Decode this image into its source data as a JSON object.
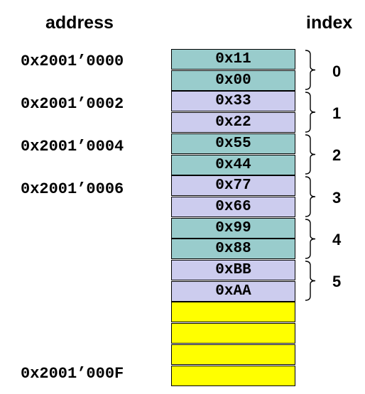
{
  "headings": {
    "address": "address",
    "index": "index"
  },
  "colors": {
    "teal": "#99CCCC",
    "lavender": "#CCCCEE",
    "yellow": "#FFFF00"
  },
  "addresses": [
    "0x2001’0000",
    "0x2001’0002",
    "0x2001’0004",
    "0x2001’0006",
    "0x2001’000F"
  ],
  "cells": [
    {
      "value": "0x11",
      "fill": "teal"
    },
    {
      "value": "0x00",
      "fill": "teal"
    },
    {
      "value": "0x33",
      "fill": "lavender"
    },
    {
      "value": "0x22",
      "fill": "lavender"
    },
    {
      "value": "0x55",
      "fill": "teal"
    },
    {
      "value": "0x44",
      "fill": "teal"
    },
    {
      "value": "0x77",
      "fill": "lavender"
    },
    {
      "value": "0x66",
      "fill": "lavender"
    },
    {
      "value": "0x99",
      "fill": "teal"
    },
    {
      "value": "0x88",
      "fill": "teal"
    },
    {
      "value": "0xBB",
      "fill": "lavender"
    },
    {
      "value": "0xAA",
      "fill": "lavender"
    },
    {
      "value": "",
      "fill": "yellow"
    },
    {
      "value": "",
      "fill": "yellow"
    },
    {
      "value": "",
      "fill": "yellow"
    },
    {
      "value": "",
      "fill": "yellow"
    }
  ],
  "indices": [
    "0",
    "1",
    "2",
    "3",
    "4",
    "5"
  ]
}
